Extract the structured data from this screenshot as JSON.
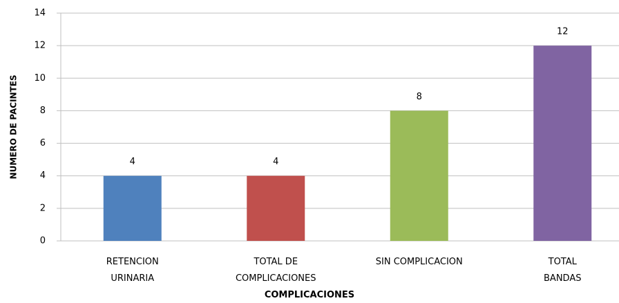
{
  "chart_data": {
    "type": "bar",
    "categories": [
      "RETENCION\nURINARIA",
      "TOTAL DE\nCOMPLICACIONES",
      "SIN COMPLICACION",
      "TOTAL BANDAS"
    ],
    "values": [
      4,
      4,
      8,
      12
    ],
    "colors": [
      "#4f81bd",
      "#c0504d",
      "#9bbb59",
      "#8064a2"
    ],
    "xlabel": "COMPLICACIONES",
    "ylabel": "NUMERO DE PACINTES",
    "ylim": [
      0,
      14
    ],
    "yticks": [
      0,
      2,
      4,
      6,
      8,
      10,
      12,
      14
    ],
    "grid": true
  }
}
